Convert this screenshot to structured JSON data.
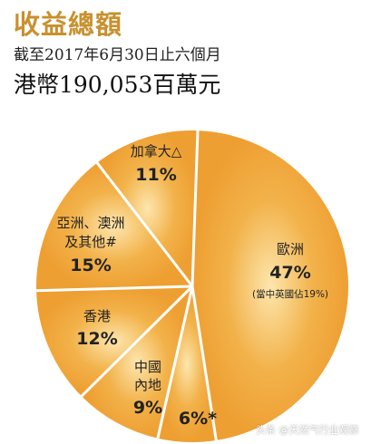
{
  "header": {
    "title": "收益總額",
    "subtitle": "截至2017年6月30日止六個月",
    "total": "港幣190,053百萬元"
  },
  "chart_data": {
    "type": "pie",
    "slices": [
      {
        "name": "歐洲",
        "value": 47,
        "label": "47%",
        "note": "(當中英國佔19%)",
        "color": "#f2b24a"
      },
      {
        "name": "",
        "value": 6,
        "label": "6%*",
        "color": "#f2b24a"
      },
      {
        "name": "中國內地",
        "value": 9,
        "label": "9%",
        "color": "#f2b24a"
      },
      {
        "name": "香港",
        "value": 12,
        "label": "12%",
        "color": "#f2b24a"
      },
      {
        "name": "亞洲、澳洲及其他#",
        "value": 15,
        "label": "15%",
        "color": "#f2b24a"
      },
      {
        "name": "加拿大△",
        "value": 11,
        "label": "11%",
        "color": "#f2b24a"
      }
    ],
    "label_lines": {
      "europe": [
        "歐洲"
      ],
      "china": [
        "中國",
        "內地"
      ],
      "hk": [
        "香港"
      ],
      "asia": [
        "亞洲、澳洲",
        "及其他#"
      ],
      "canada": [
        "加拿大△"
      ]
    },
    "center_color": "#fde6ad",
    "edge_color": "#ee9f32",
    "divider_color": "#ffffff"
  },
  "watermark": "头条 @天然气行业观察"
}
